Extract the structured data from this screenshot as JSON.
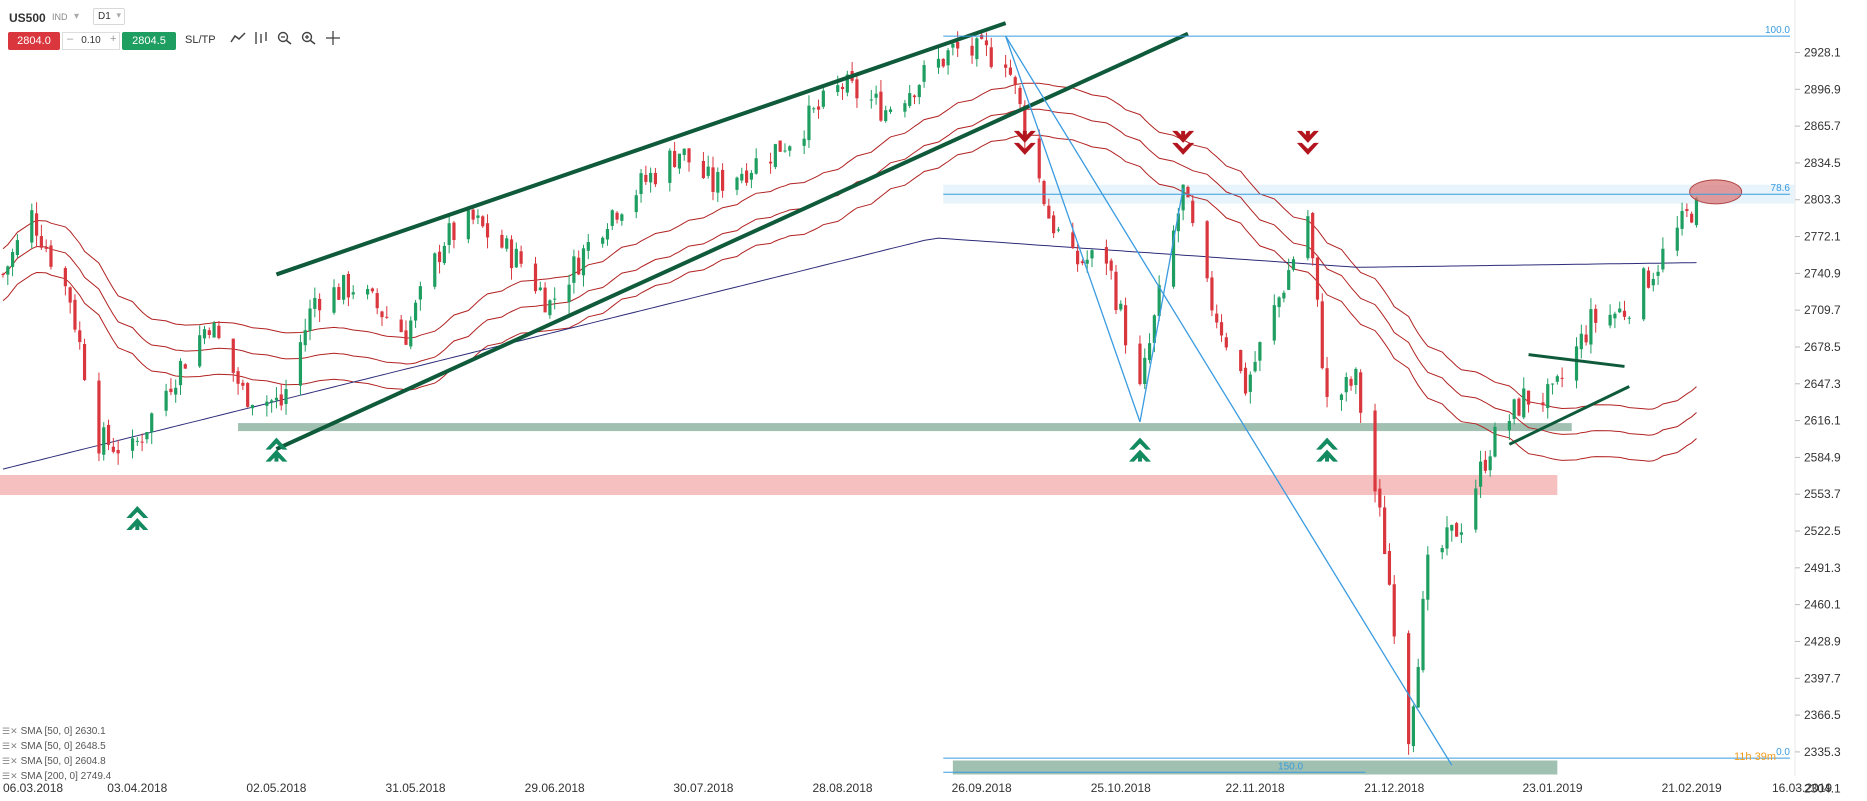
{
  "header": {
    "symbol": "US500",
    "exchange": "IND",
    "timeframe": "D1",
    "sell_price": "2804.0",
    "quantity": "0.10",
    "qty_minus": "–",
    "qty_plus": "+",
    "buy_price": "2804.5",
    "sltp_label": "SL/TP"
  },
  "toolbar": [
    "line-chart-icon",
    "indicators-icon",
    "zoom-out-icon",
    "zoom-in-icon",
    "crosshair-icon"
  ],
  "indicators": [
    {
      "label": "SMA [50, 0] 2630.1"
    },
    {
      "label": "SMA [50, 0] 2648.5"
    },
    {
      "label": "SMA [50, 0] 2604.8"
    },
    {
      "label": "SMA [200, 0] 2749.4"
    }
  ],
  "countdown": "11h 39m",
  "colors": {
    "bull": "#1f9e62",
    "bear": "#d9363e",
    "channel": "#0e5a3a",
    "sma50": "#b22222",
    "sma200": "#2c2c7a",
    "fib": "#3a9be0",
    "support_zone": "#8fb5a3",
    "red_zone": "#f5b5b5"
  },
  "chart_data": {
    "type": "candlestick",
    "title": "",
    "xlabel": "",
    "ylabel": "",
    "symbol": "US500",
    "timeframe": "D1",
    "ylim": [
      2290,
      2960
    ],
    "y_ticks": [
      2304.1,
      2335.3,
      2366.5,
      2397.7,
      2428.9,
      2460.1,
      2491.3,
      2522.5,
      2553.7,
      2584.9,
      2616.1,
      2647.3,
      2678.5,
      2709.7,
      2740.9,
      2772.1,
      2803.3,
      2834.5,
      2865.7,
      2896.9,
      2928.1
    ],
    "x_dates": [
      "06.03.2018",
      "03.04.2018",
      "02.05.2018",
      "31.05.2018",
      "29.06.2018",
      "30.07.2018",
      "28.08.2018",
      "26.09.2018",
      "25.10.2018",
      "22.11.2018",
      "21.12.2018",
      "23.01.2019",
      "21.02.2019",
      "16.03.2019"
    ],
    "x_range": [
      "2018-03-06",
      "2019-03-16"
    ],
    "price_path": [
      [
        "2018-03-06",
        2740
      ],
      [
        "2018-03-12",
        2790
      ],
      [
        "2018-03-20",
        2720
      ],
      [
        "2018-03-26",
        2600
      ],
      [
        "2018-04-02",
        2590
      ],
      [
        "2018-04-10",
        2650
      ],
      [
        "2018-04-18",
        2700
      ],
      [
        "2018-04-25",
        2640
      ],
      [
        "2018-05-03",
        2630
      ],
      [
        "2018-05-10",
        2720
      ],
      [
        "2018-05-18",
        2730
      ],
      [
        "2018-05-29",
        2690
      ],
      [
        "2018-06-06",
        2770
      ],
      [
        "2018-06-12",
        2785
      ],
      [
        "2018-06-22",
        2750
      ],
      [
        "2018-06-28",
        2715
      ],
      [
        "2018-07-10",
        2790
      ],
      [
        "2018-07-25",
        2845
      ],
      [
        "2018-08-01",
        2815
      ],
      [
        "2018-08-10",
        2835
      ],
      [
        "2018-08-17",
        2855
      ],
      [
        "2018-08-28",
        2900
      ],
      [
        "2018-09-06",
        2880
      ],
      [
        "2018-09-20",
        2930
      ],
      [
        "2018-10-01",
        2925
      ],
      [
        "2018-10-10",
        2790
      ],
      [
        "2018-10-15",
        2750
      ],
      [
        "2018-10-22",
        2755
      ],
      [
        "2018-10-29",
        2640
      ],
      [
        "2018-11-02",
        2720
      ],
      [
        "2018-11-07",
        2810
      ],
      [
        "2018-11-12",
        2725
      ],
      [
        "2018-11-20",
        2645
      ],
      [
        "2018-11-27",
        2720
      ],
      [
        "2018-12-03",
        2790
      ],
      [
        "2018-12-07",
        2630
      ],
      [
        "2018-12-13",
        2650
      ],
      [
        "2018-12-19",
        2510
      ],
      [
        "2018-12-24",
        2350
      ],
      [
        "2018-12-28",
        2490
      ],
      [
        "2019-01-04",
        2530
      ],
      [
        "2019-01-10",
        2595
      ],
      [
        "2019-01-17",
        2635
      ],
      [
        "2019-01-23",
        2635
      ],
      [
        "2019-01-31",
        2700
      ],
      [
        "2019-02-07",
        2710
      ],
      [
        "2019-02-14",
        2750
      ],
      [
        "2019-02-21",
        2795
      ]
    ],
    "support_levels": [
      {
        "price_range": [
          2608,
          2614
        ],
        "color": "#8fb5a3"
      },
      {
        "price_range": [
          2553,
          2570
        ],
        "color": "#f5b5b5"
      }
    ],
    "fibonacci": [
      {
        "label": "100.0",
        "price": 2942
      },
      {
        "label": "78.6",
        "price": 2808
      },
      {
        "label": "150.0",
        "price": 2318
      },
      {
        "label": "0.0",
        "price": 2330
      }
    ],
    "annotations": {
      "up_arrows": [
        "2018-04-03",
        "2018-05-02",
        "2018-10-29",
        "2018-12-07"
      ],
      "down_arrows": [
        "2018-10-05",
        "2018-11-07",
        "2018-12-03"
      ]
    }
  }
}
